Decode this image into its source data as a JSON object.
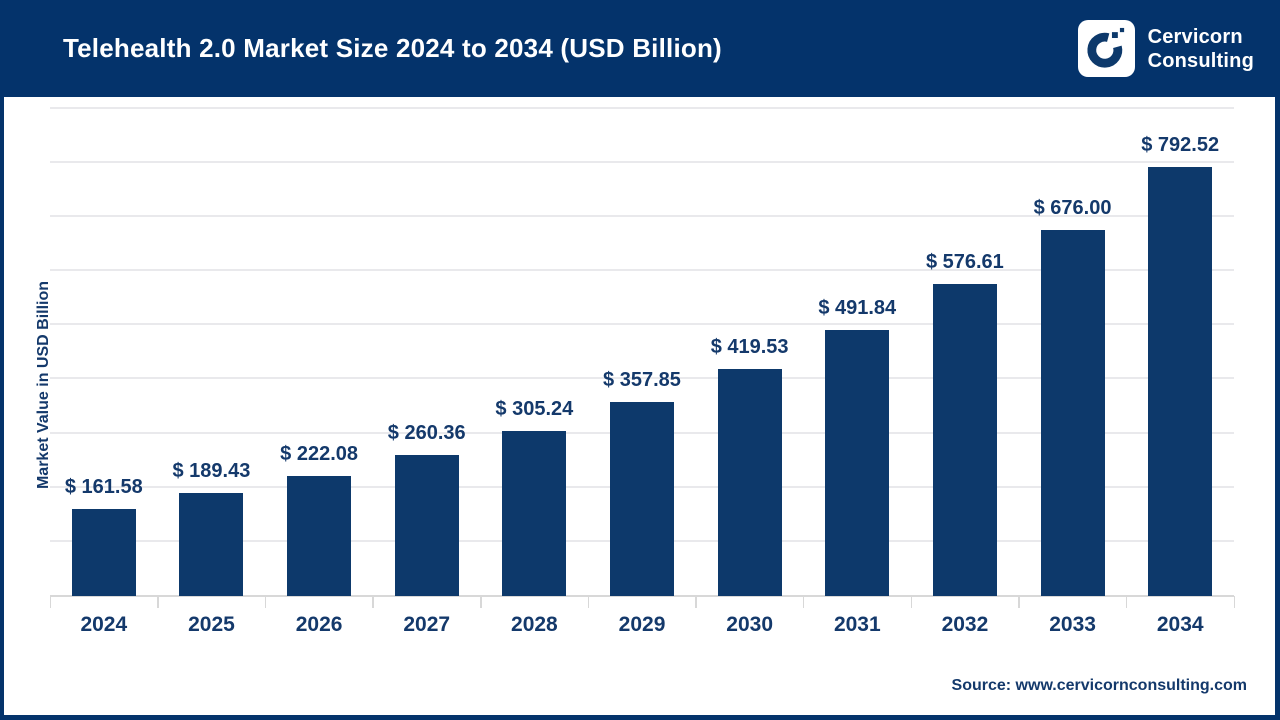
{
  "header": {
    "title": "Telehealth 2.0 Market Size 2024 to 2034 (USD Billion)",
    "brand": {
      "line1": "Cervicorn",
      "line2": "Consulting",
      "mark_icon": "cervicorn-c-logo"
    }
  },
  "chart_data": {
    "type": "bar",
    "title": "Telehealth 2.0 Market Size 2024 to 2034 (USD Billion)",
    "categories": [
      "2024",
      "2025",
      "2026",
      "2027",
      "2028",
      "2029",
      "2030",
      "2031",
      "2032",
      "2033",
      "2034"
    ],
    "values": [
      161.58,
      189.43,
      222.08,
      260.36,
      305.24,
      357.85,
      419.53,
      491.84,
      576.61,
      676.0,
      792.52
    ],
    "value_prefix": "$ ",
    "xlabel": "",
    "ylabel": "Market Value in USD Billion",
    "ylim": [
      0,
      900
    ],
    "gridline_step": 100,
    "grid": "horizontal-only",
    "legend": "none",
    "bar_color": "#0D396B"
  },
  "footer": {
    "source": "Source: www.cervicornconsulting.com"
  },
  "colors": {
    "header_bg": "#04336B",
    "bar_navy": "#0D396B",
    "label_navy": "#14396B",
    "gridline": "#E9E9EC",
    "axis_line": "#D8D8D8",
    "plot_bg": "#FFFFFF",
    "title_text": "#FFFFFF"
  }
}
